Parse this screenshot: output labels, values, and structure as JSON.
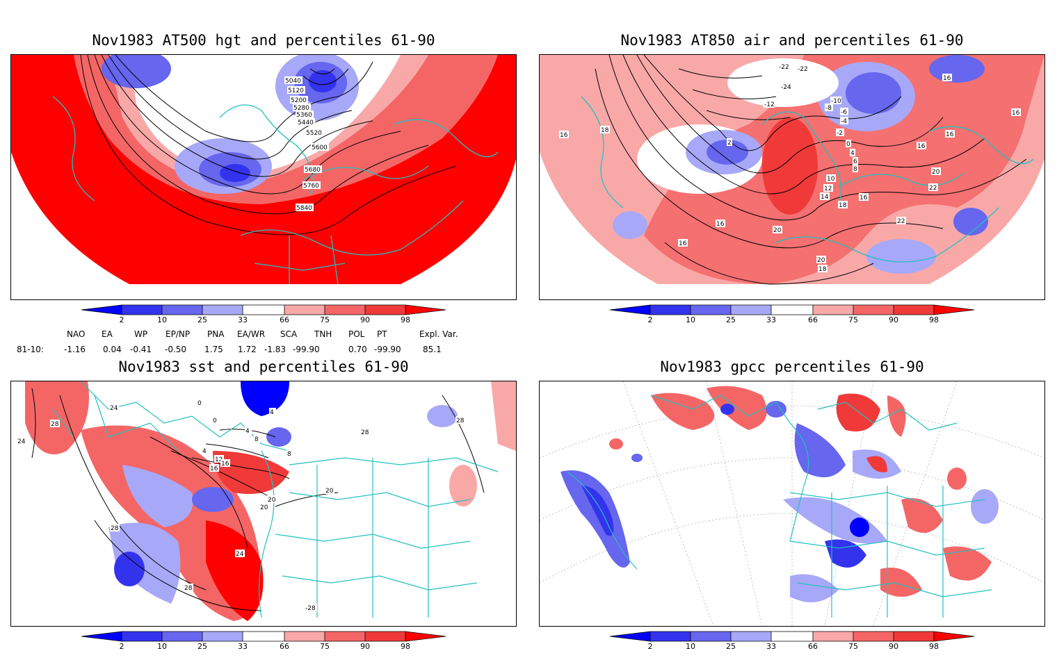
{
  "panels": [
    {
      "title": "Nov1983 AT500 hgt and percentiles 61-90",
      "contour_labels": [
        "5040",
        "5120",
        "5200",
        "5280",
        "5360",
        "5440",
        "5520",
        "5600",
        "5680",
        "5760",
        "5840"
      ]
    },
    {
      "title": "Nov1983 AT850 air and percentiles 61-90",
      "contour_labels": [
        "-22",
        "-22",
        "-24",
        "-12",
        "-10",
        "-8",
        "-6",
        "-4",
        "-2",
        "0",
        "2",
        "4",
        "6",
        "8",
        "10",
        "12",
        "14",
        "16",
        "16",
        "16",
        "16",
        "16",
        "16",
        "18",
        "18",
        "18",
        "20",
        "20",
        "20",
        "22",
        "22",
        "16",
        "16"
      ]
    },
    {
      "title": "Nov1983 sst and percentiles 61-90",
      "contour_labels": [
        "24",
        "28",
        "24",
        "0",
        "0",
        "4",
        "4",
        "8",
        "4",
        "8",
        "12",
        "16",
        "20",
        "20",
        "24",
        "28",
        "28",
        "28",
        "-28",
        "28",
        "16",
        "20"
      ]
    },
    {
      "title": "Nov1983 gpcc percentiles 61-90",
      "contour_labels": []
    }
  ],
  "colorbar": {
    "ticks": [
      "2",
      "10",
      "25",
      "33",
      "66",
      "75",
      "90",
      "98"
    ],
    "colors": {
      "blue_extreme": "#0000ff",
      "blue_strong": "#3333ee",
      "blue_mid": "#6666ee",
      "blue_light": "#a8a8f8",
      "red_light": "#f9a8a8",
      "red_mid": "#f46666",
      "red_strong": "#f03a3a",
      "red_extreme": "#ff0000",
      "coast": "#22c0c0"
    }
  },
  "indices": {
    "headers": [
      "NAO",
      "EA",
      "WP",
      "EP/NP",
      "PNA",
      "EA/WR",
      "SCA",
      "TNH",
      "POL",
      "PT",
      "Expl. Var."
    ],
    "row_label": "81-10:",
    "values": [
      "-1.16",
      "0.04",
      "-0.41",
      "-0.50",
      "1.75",
      "1.72",
      "-1.83",
      "-99.90",
      "0.70",
      "-99.90",
      "85.1"
    ]
  }
}
